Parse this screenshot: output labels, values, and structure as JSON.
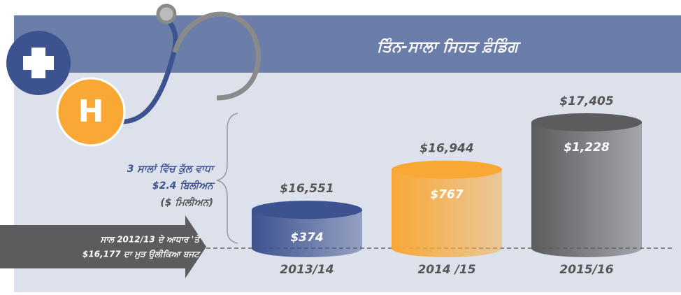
{
  "chart_data": {
    "type": "cylinder",
    "title": "ਤਿੰਨ-ਸਾਲਾ ਸਿਹਤ ਫ਼ੰਡਿੰਗ",
    "annotation": [
      "3 ਸਾਲਾਂ ਵਿੱਚ ਕੁੱਲ ਵਾਧਾ",
      "$2.4 ਬਿਲੀਅਨ",
      "($ ਮਿਲੀਅਨ)"
    ],
    "baseline_label": [
      "ਸਾਲ 2012/13 ਦੇ ਆਧਾਰ 'ਤੇ",
      "$16,177 ਦਾ ਮੁੜ ਉਲੀਕਿਆ ਬਜਟ"
    ],
    "icon_label": "H",
    "categories": [
      "2013/14",
      "2014 /15",
      "2015/16"
    ],
    "values": [
      374,
      767,
      1228
    ],
    "value_labels": [
      "$374",
      "$767",
      "$1,228"
    ],
    "totals": [
      16551,
      16944,
      17405
    ],
    "total_labels": [
      "$16,551",
      "$16,944",
      "$17,405"
    ],
    "colors": [
      "#3d5390",
      "#f9a836",
      "#5c5c5e"
    ]
  }
}
